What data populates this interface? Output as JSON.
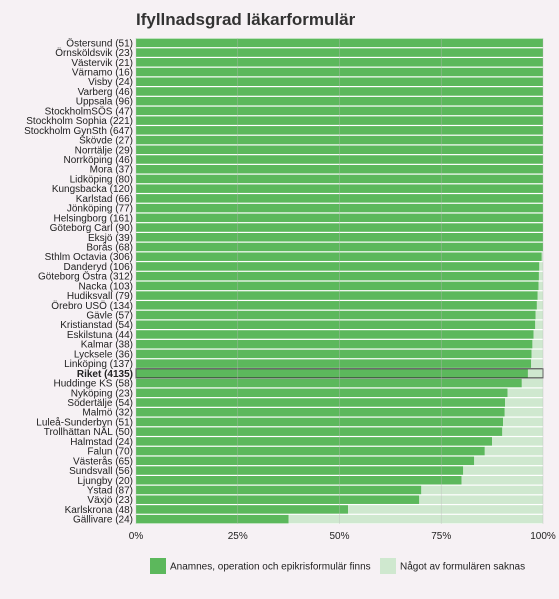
{
  "chart_data": {
    "type": "bar",
    "orientation": "horizontal",
    "stacked": true,
    "title": "Ifyllnadsgrad läkarformulär",
    "xlim": [
      0,
      100
    ],
    "xticks": [
      "0%",
      "25%",
      "50%",
      "75%",
      "100%"
    ],
    "highlight_category": "Riket (4135)",
    "categories": [
      "Östersund (51)",
      "Örnsköldsvik (23)",
      "Västervik (21)",
      "Värnamo (16)",
      "Visby (24)",
      "Varberg (46)",
      "Uppsala (96)",
      "StockholmSÖS (47)",
      "Stockholm Sophia (221)",
      "Stockholm GynSth (647)",
      "Skövde (27)",
      "Norrtälje (29)",
      "Norrköping (46)",
      "Mora (37)",
      "Lidköping (80)",
      "Kungsbacka (120)",
      "Karlstad (66)",
      "Jönköping (77)",
      "Helsingborg (161)",
      "Göteborg Carl (90)",
      "Eksjö (39)",
      "Borås (68)",
      "Sthlm Octavia (306)",
      "Danderyd (106)",
      "Göteborg Östra (312)",
      "Nacka (103)",
      "Hudiksvall (79)",
      "Örebro USÖ (134)",
      "Gävle (57)",
      "Kristianstad (54)",
      "Eskilstuna (44)",
      "Kalmar (38)",
      "Lycksele (36)",
      "Linköping (137)",
      "Riket (4135)",
      "Huddinge KS (58)",
      "Nyköping (23)",
      "Södertälje (54)",
      "Malmö (32)",
      "Luleå-Sunderbyn (51)",
      "Trollhättan NÄL (50)",
      "Halmstad (24)",
      "Falun (70)",
      "Västerås (65)",
      "Sundsvall (56)",
      "Ljungby (20)",
      "Ystad (87)",
      "Växjö (23)",
      "Karlskrona (48)",
      "Gällivare (24)"
    ],
    "series": [
      {
        "name": "Anamnes, operation och epikrisformulär  finns",
        "color": "#5cb85c",
        "values": [
          100,
          100,
          100,
          100,
          100,
          100,
          100,
          100,
          100,
          100,
          100,
          100,
          100,
          100,
          100,
          100,
          100,
          100,
          100,
          100,
          100,
          100,
          99.7,
          99.1,
          99.0,
          98.9,
          98.7,
          98.5,
          98.2,
          98.1,
          97.7,
          97.4,
          97.2,
          97.1,
          96.3,
          94.8,
          91.3,
          90.7,
          90.6,
          90.2,
          90.0,
          87.5,
          85.7,
          83.1,
          80.4,
          80.0,
          70.1,
          69.6,
          52.1,
          37.5
        ]
      },
      {
        "name": "Något av formulären saknas",
        "color": "#cfe8cf",
        "values": [
          0,
          0,
          0,
          0,
          0,
          0,
          0,
          0,
          0,
          0,
          0,
          0,
          0,
          0,
          0,
          0,
          0,
          0,
          0,
          0,
          0,
          0,
          0.3,
          0.9,
          1.0,
          1.1,
          1.3,
          1.5,
          1.8,
          1.9,
          2.3,
          2.6,
          2.8,
          2.9,
          3.7,
          5.2,
          8.7,
          9.3,
          9.4,
          9.8,
          10.0,
          12.5,
          14.3,
          16.9,
          19.6,
          20.0,
          29.9,
          30.4,
          47.9,
          62.5
        ]
      }
    ],
    "grid": true,
    "legend_position": "bottom"
  }
}
